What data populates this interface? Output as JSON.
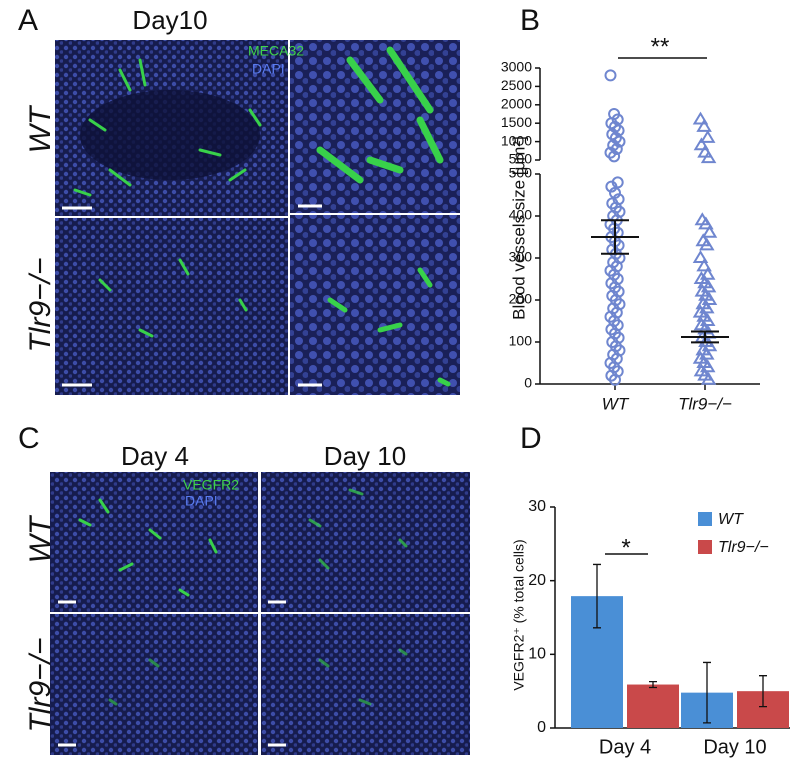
{
  "panel_a": {
    "label": "A",
    "title": "Day10",
    "stains": [
      "MECA32",
      "DAPI"
    ],
    "rows": [
      "WT",
      "Tlr9−/−"
    ]
  },
  "panel_c": {
    "label": "C",
    "columns": [
      "Day 4",
      "Day 10"
    ],
    "stains": [
      "VEGFR2",
      "DAPI"
    ],
    "rows": [
      "WT",
      "Tlr9−/−"
    ]
  },
  "chart_data": [
    {
      "type": "strip",
      "label": "B",
      "ylabel": "Blood vessels size [μm²]",
      "categories": [
        "WT",
        "Tlr9−/−"
      ],
      "groups": [
        {
          "marker": "circle",
          "color": "#6f86cf",
          "values": [
            2800,
            1750,
            1600,
            1500,
            1400,
            1300,
            1200,
            1100,
            1000,
            900,
            800,
            700,
            600,
            480,
            470,
            455,
            440,
            430,
            420,
            410,
            400,
            390,
            380,
            370,
            360,
            350,
            340,
            330,
            320,
            310,
            300,
            290,
            280,
            270,
            260,
            250,
            240,
            230,
            220,
            210,
            200,
            190,
            180,
            170,
            160,
            150,
            140,
            130,
            120,
            110,
            100,
            90,
            80,
            70,
            60,
            50,
            40,
            30,
            20,
            10
          ]
        },
        {
          "marker": "triangle",
          "color": "#6f86cf",
          "values": [
            1600,
            1400,
            1100,
            900,
            700,
            550,
            390,
            380,
            360,
            340,
            330,
            300,
            280,
            260,
            250,
            240,
            230,
            220,
            210,
            200,
            190,
            180,
            170,
            160,
            150,
            140,
            130,
            120,
            110,
            100,
            90,
            80,
            70,
            60,
            50,
            40,
            30,
            20,
            10
          ]
        }
      ],
      "means": [
        350,
        112
      ],
      "errors": [
        40,
        13
      ],
      "segments": [
        {
          "ylim": [
            0,
            500
          ],
          "yticks": [
            0,
            100,
            200,
            300,
            400,
            500
          ]
        },
        {
          "ylim": [
            500,
            3000
          ],
          "yticks": [
            500,
            1000,
            1500,
            2000,
            2500,
            3000
          ]
        }
      ],
      "significance": "**"
    },
    {
      "type": "bar",
      "label": "D",
      "ylabel": "VEGFR2⁺ (% total cells)",
      "categories": [
        "Day 4",
        "Day 10"
      ],
      "series": [
        {
          "name": "WT",
          "color": "#4a8fd6",
          "values": [
            17.9,
            4.8
          ],
          "errors": [
            4.3,
            4.1
          ]
        },
        {
          "name": "Tlr9−/−",
          "color": "#c9494a",
          "values": [
            5.9,
            5.0
          ],
          "errors": [
            0.4,
            2.1
          ]
        }
      ],
      "ylim": [
        0,
        30
      ],
      "yticks": [
        0,
        10,
        20,
        30
      ],
      "significance": "*"
    }
  ]
}
